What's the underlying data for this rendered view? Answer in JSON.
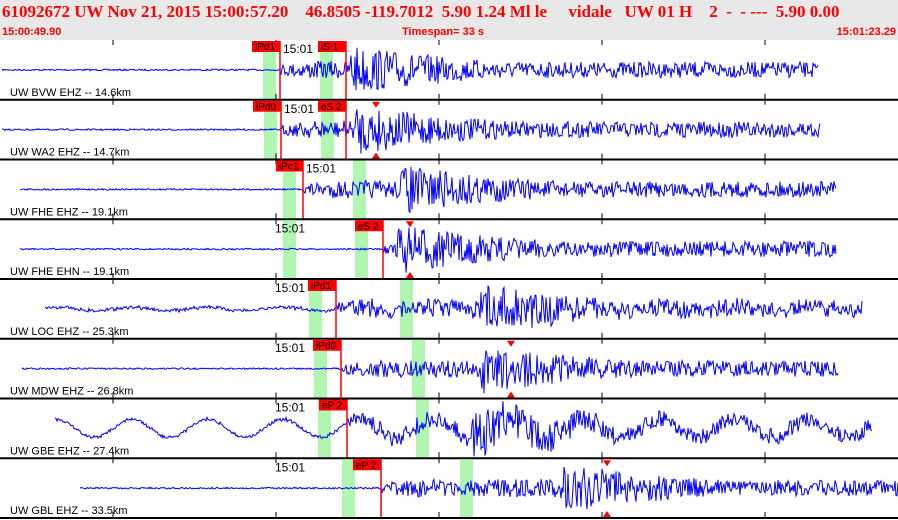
{
  "header": {
    "event_line": "61092672 UW Nov 21, 2015 15:00:57.20    46.8505 -119.7012  5.90 1.24 Ml le     vidale   UW 01 H    2  -  - ---  5.90 0.00",
    "start_time": "15:00:49.90",
    "timespan": "Timespan=  33 s",
    "end_time": "15:01:23.29"
  },
  "colors": {
    "header_text": "#ff0000",
    "trace": "#0000ff",
    "pick": "#ff0000",
    "window": "#b0f5b0"
  },
  "channels": [
    {
      "label": "UW BVW EHZ -- 14.6km",
      "time_label": "15:01",
      "picks": [
        "iPd1",
        "iS 1"
      ]
    },
    {
      "label": "UW WA2 EHZ -- 14.7km",
      "time_label": "15:01",
      "picks": [
        "iPd0",
        "eS 2"
      ]
    },
    {
      "label": "UW FHE EHZ -- 19.1km",
      "time_label": "15:01",
      "picks": [
        "iPc1"
      ]
    },
    {
      "label": "UW FHE EHN -- 19.1km",
      "time_label": "15:01",
      "picks": [
        "eS 2"
      ]
    },
    {
      "label": "UW LOC EHZ -- 25.3km",
      "time_label": "15:01",
      "picks": [
        "iPd1"
      ]
    },
    {
      "label": "UW MDW EHZ -- 26.8km",
      "time_label": "15:01",
      "picks": [
        "iPd0"
      ]
    },
    {
      "label": "UW GBE EHZ -- 27.4km",
      "time_label": "15:01",
      "picks": [
        "eP 2"
      ]
    },
    {
      "label": "UW GBL EHZ -- 33.5km",
      "time_label": "15:01",
      "picks": [
        "eP 2"
      ]
    }
  ]
}
